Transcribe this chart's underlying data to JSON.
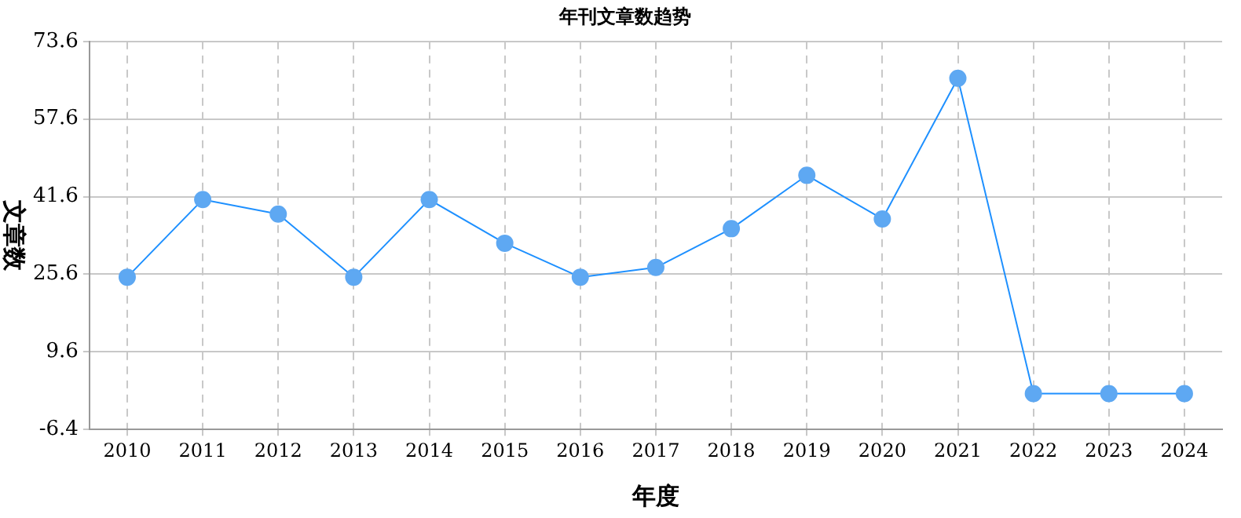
{
  "chart_data": {
    "type": "line",
    "title": "年刊文章数趋势",
    "xlabel": "年度",
    "ylabel": "文章数",
    "categories": [
      "2010",
      "2011",
      "2012",
      "2013",
      "2014",
      "2015",
      "2016",
      "2017",
      "2018",
      "2019",
      "2020",
      "2021",
      "2022",
      "2023",
      "2024"
    ],
    "series": [
      {
        "color": "#1e90ff",
        "values": [
          25,
          41,
          38,
          25,
          41,
          32,
          25,
          27,
          35,
          46,
          37,
          66,
          1,
          1,
          1
        ]
      }
    ],
    "ylim": [
      -6.4,
      73.6
    ],
    "yticks": [
      -6.4,
      9.6,
      25.6,
      41.6,
      57.6,
      73.6
    ],
    "grid": true,
    "legend": false,
    "marker": "circle",
    "line_style": "solid"
  }
}
